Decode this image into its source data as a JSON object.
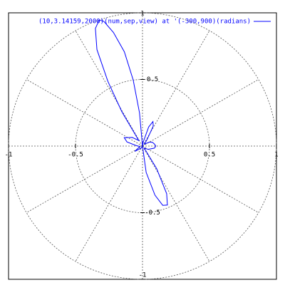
{
  "chart_data": {
    "type": "polar",
    "series": [
      {
        "name": "(10,3.14159,2000)(num,sep,view) at '(-300,900)(radians)",
        "color": "#0000ff",
        "theta": [
          0.0,
          0.17,
          0.35,
          0.52,
          0.79,
          0.96,
          1.08,
          1.17,
          1.26,
          1.4,
          1.61,
          1.66,
          1.71,
          1.76,
          1.82,
          1.87,
          1.9,
          1.95,
          2.01,
          2.06,
          2.11,
          2.16,
          2.44,
          2.71,
          2.88,
          3.05,
          3.32,
          3.75,
          4.1,
          4.71,
          4.85,
          4.96,
          5.04,
          5.11,
          5.18,
          5.27,
          5.41,
          5.76,
          6.11,
          6.28
        ],
        "r": [
          0.1,
          0.09,
          0.08,
          0.06,
          0.02,
          0.06,
          0.17,
          0.2,
          0.15,
          0.03,
          0,
          0.25,
          0.5,
          0.72,
          0.88,
          0.98,
          1.0,
          0.95,
          0.8,
          0.55,
          0.3,
          0.05,
          0.1,
          0.15,
          0.12,
          0.05,
          0.02,
          0.07,
          0.02,
          0,
          0.2,
          0.38,
          0.47,
          0.48,
          0.4,
          0.2,
          0.02,
          0.05,
          0.09,
          0.1
        ]
      }
    ],
    "xlim": [
      -1,
      1
    ],
    "ylim": [
      -1,
      1
    ],
    "xticks": [
      -1,
      -0.5,
      0.5,
      1
    ],
    "yticks": [
      -1,
      -0.5,
      0.5,
      1
    ],
    "grid": true,
    "legend": "top-right"
  }
}
